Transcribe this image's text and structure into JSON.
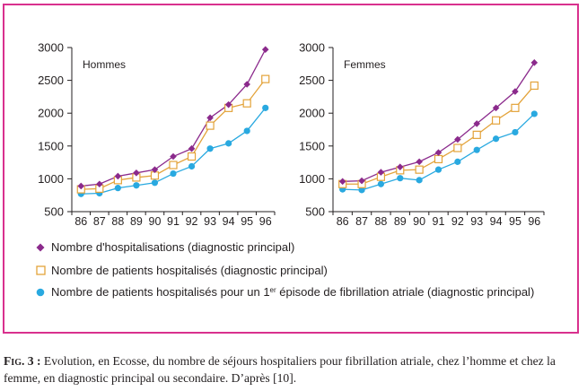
{
  "chart_data": [
    {
      "type": "line",
      "title": "Hommes",
      "categories": [
        "86",
        "87",
        "88",
        "89",
        "90",
        "91",
        "92",
        "93",
        "94",
        "95",
        "96"
      ],
      "ylim": [
        500,
        3000
      ],
      "yticks": [
        "3000",
        "2500",
        "2000",
        "1500",
        "1000",
        "500"
      ],
      "series": [
        {
          "name": "Nombre d'hospitalisations (diagnostic principal)",
          "marker": "diamond",
          "color": "#8b2a8c",
          "values": [
            890,
            920,
            1040,
            1090,
            1140,
            1340,
            1460,
            1930,
            2130,
            2440,
            2970
          ]
        },
        {
          "name": "Nombre de patients hospitalisés (diagnostic principal)",
          "marker": "square",
          "color": "#e3a33a",
          "values": [
            840,
            850,
            980,
            1020,
            1050,
            1210,
            1340,
            1810,
            2080,
            2150,
            2520
          ]
        },
        {
          "name": "Nombre de patients hospitalisés pour un 1er épisode de fibrillation atriale (diagnostic principal)",
          "marker": "circle",
          "color": "#29a9e0",
          "values": [
            770,
            780,
            860,
            900,
            940,
            1080,
            1190,
            1460,
            1540,
            1730,
            2080
          ]
        }
      ]
    },
    {
      "type": "line",
      "title": "Femmes",
      "categories": [
        "86",
        "87",
        "88",
        "89",
        "90",
        "91",
        "92",
        "93",
        "94",
        "95",
        "96"
      ],
      "ylim": [
        500,
        3000
      ],
      "yticks": [
        "3000",
        "2500",
        "2000",
        "1500",
        "1000",
        "500"
      ],
      "series": [
        {
          "name": "Nombre d'hospitalisations (diagnostic principal)",
          "marker": "diamond",
          "color": "#8b2a8c",
          "values": [
            960,
            970,
            1100,
            1180,
            1260,
            1400,
            1600,
            1840,
            2080,
            2330,
            2770
          ]
        },
        {
          "name": "Nombre de patients hospitalisés (diagnostic principal)",
          "marker": "square",
          "color": "#e3a33a",
          "values": [
            920,
            920,
            1030,
            1130,
            1140,
            1300,
            1470,
            1670,
            1890,
            2080,
            2420
          ]
        },
        {
          "name": "Nombre de patients hospitalisés pour un 1er épisode de fibrillation atriale (diagnostic principal)",
          "marker": "circle",
          "color": "#29a9e0",
          "values": [
            840,
            830,
            920,
            1010,
            980,
            1140,
            1260,
            1440,
            1610,
            1710,
            1990
          ]
        }
      ]
    }
  ],
  "legend": [
    {
      "marker": "diamond",
      "color": "#8b2a8c",
      "label": "Nombre d'hospitalisations (diagnostic principal)"
    },
    {
      "marker": "square",
      "color": "#e3a33a",
      "label": "Nombre de patients hospitalisés (diagnostic principal)"
    },
    {
      "marker": "circle",
      "color": "#29a9e0",
      "label_before": "Nombre de patients hospitalisés pour un ",
      "label_sup_num": "1",
      "label_sup": "er",
      "label_after": " épisode de fibrillation atriale (diagnostic principal)"
    }
  ],
  "caption": {
    "label": "Fig. 3 :",
    "text": " Evolution, en Ecosse, du nombre de séjours hospitaliers pour fibrillation atriale, chez l’homme et chez la femme, en diagnostic principal ou secondaire. D’après [10]."
  },
  "colors": {
    "frame": "#d9318e",
    "axis": "#231f20"
  }
}
